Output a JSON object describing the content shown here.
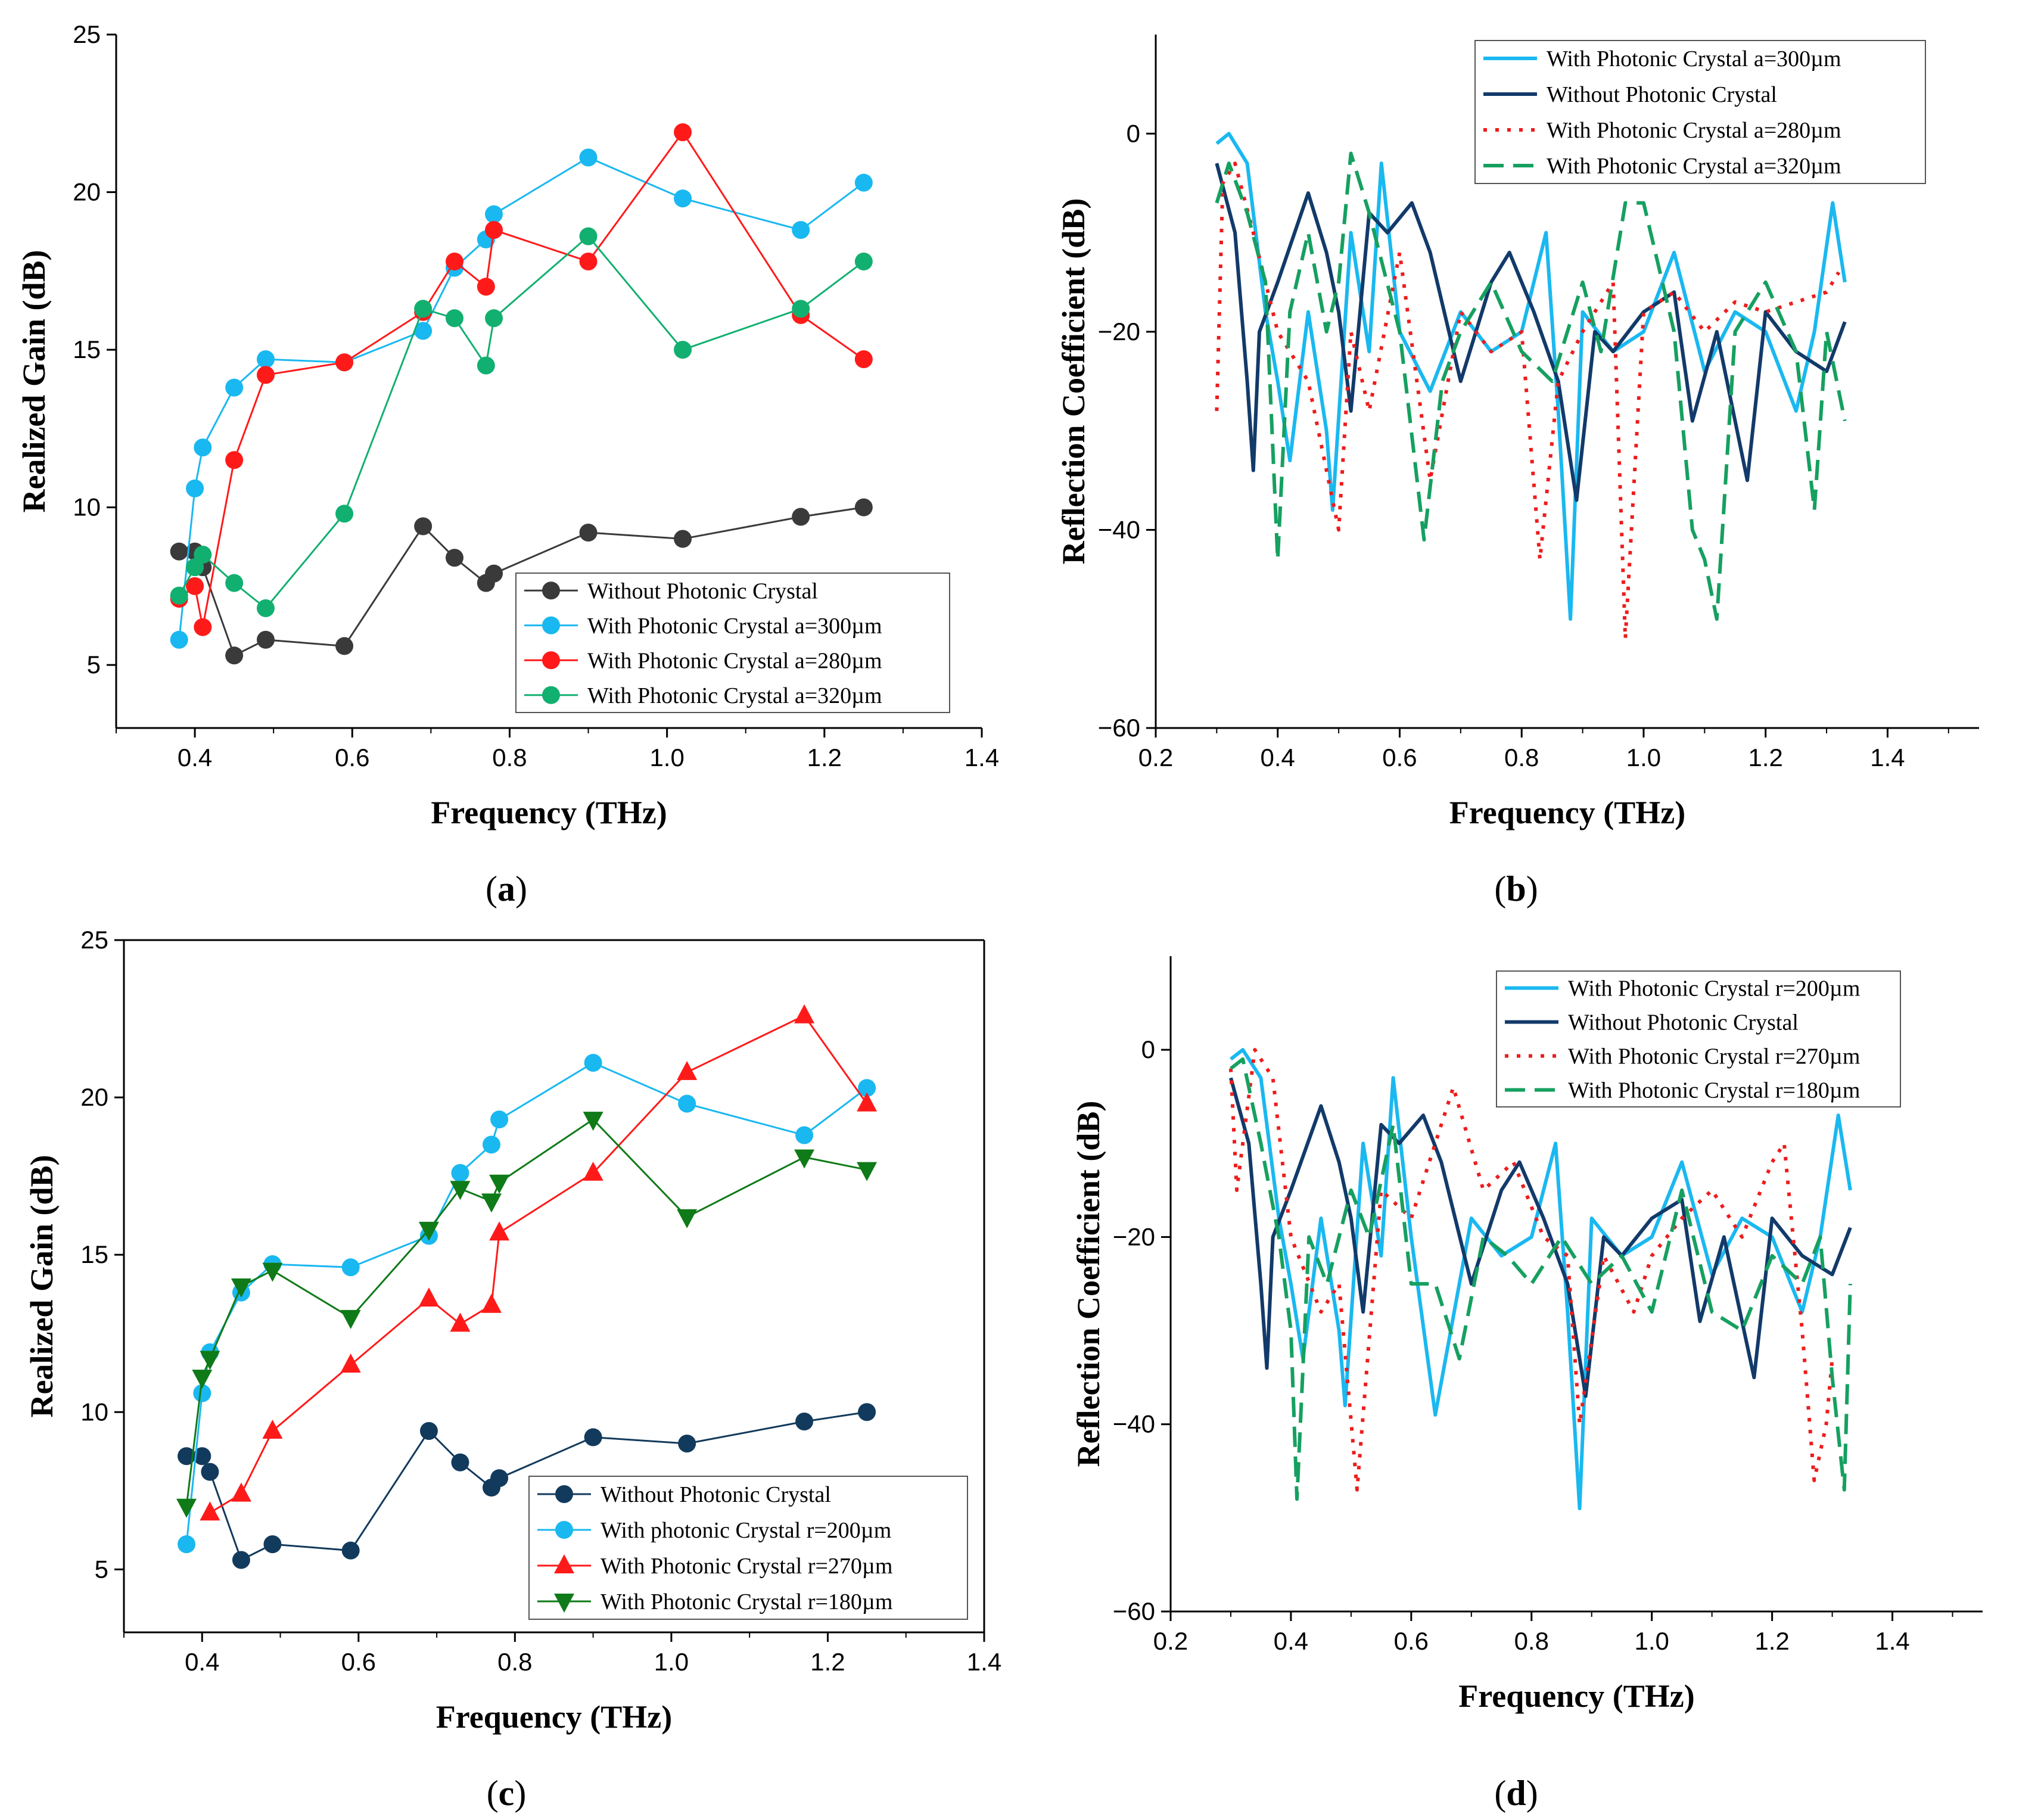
{
  "chart_data": [
    {
      "panel": "a",
      "type": "line",
      "xlabel": "Frequency (THz)",
      "ylabel": "Realized Gain (dB)",
      "xlim": [
        0.3,
        1.4
      ],
      "ylim": [
        3,
        25
      ],
      "xticks": [
        "0.4",
        "0.6",
        "0.8",
        "1.0",
        "1.2",
        "1.4"
      ],
      "yticks": [
        "5",
        "10",
        "15",
        "20",
        "25"
      ],
      "legend_position": "bottom-right",
      "series": [
        {
          "name": "Without Photonic Crystal",
          "color": "#3a3a3a",
          "marker": "circle",
          "x": [
            0.38,
            0.4,
            0.41,
            0.45,
            0.49,
            0.59,
            0.69,
            0.73,
            0.77,
            0.78,
            0.9,
            1.02,
            1.17,
            1.25
          ],
          "y": [
            8.6,
            8.6,
            8.1,
            5.3,
            5.8,
            5.6,
            9.4,
            8.4,
            7.6,
            7.9,
            9.2,
            9.0,
            9.7,
            10.0
          ]
        },
        {
          "name": "With Photonic Crystal a=300µm",
          "color": "#1ab8f0",
          "marker": "circle",
          "x": [
            0.38,
            0.4,
            0.41,
            0.45,
            0.49,
            0.59,
            0.69,
            0.73,
            0.77,
            0.78,
            0.9,
            1.02,
            1.17,
            1.25
          ],
          "y": [
            5.8,
            10.6,
            11.9,
            13.8,
            14.7,
            14.6,
            15.6,
            17.6,
            18.5,
            19.3,
            21.1,
            19.8,
            18.8,
            20.3
          ]
        },
        {
          "name": "With Photonic Crystal a=280µm",
          "color": "#ff1a1a",
          "marker": "circle",
          "x": [
            0.38,
            0.4,
            0.41,
            0.45,
            0.49,
            0.59,
            0.69,
            0.73,
            0.77,
            0.78,
            0.9,
            1.02,
            1.17,
            1.25
          ],
          "y": [
            7.1,
            7.5,
            6.2,
            11.5,
            14.2,
            14.6,
            16.2,
            17.8,
            17.0,
            18.8,
            17.8,
            21.9,
            16.1,
            14.7
          ]
        },
        {
          "name": "With Photonic Crystal a=320µm",
          "color": "#12b070",
          "marker": "circle",
          "x": [
            0.38,
            0.4,
            0.41,
            0.45,
            0.49,
            0.59,
            0.69,
            0.73,
            0.77,
            0.78,
            0.9,
            1.02,
            1.17,
            1.25
          ],
          "y": [
            7.2,
            8.1,
            8.5,
            7.6,
            6.8,
            9.8,
            16.3,
            16.0,
            14.5,
            16.0,
            18.6,
            15.0,
            16.3,
            17.8
          ]
        }
      ]
    },
    {
      "panel": "b",
      "type": "line",
      "xlabel": "Frequency (THz)",
      "ylabel": "Reflection Coefficient (dB)",
      "xlim": [
        0.2,
        1.55
      ],
      "ylim": [
        -60,
        10
      ],
      "xticks": [
        "0.2",
        "0.4",
        "0.6",
        "0.8",
        "1.0",
        "1.2",
        "1.4"
      ],
      "yticks": [
        "0",
        "−20",
        "−40",
        "−60"
      ],
      "legend_position": "top-center",
      "series": [
        {
          "name": "With Photonic Crystal a=300µm",
          "color": "#1ab8f0",
          "style": "solid",
          "x": [
            0.3,
            0.32,
            0.35,
            0.38,
            0.4,
            0.42,
            0.45,
            0.48,
            0.49,
            0.52,
            0.55,
            0.57,
            0.6,
            0.65,
            0.7,
            0.75,
            0.8,
            0.84,
            0.86,
            0.88,
            0.9,
            0.95,
            1.0,
            1.05,
            1.1,
            1.15,
            1.2,
            1.25,
            1.28,
            1.31,
            1.33
          ],
          "y": [
            -1,
            0,
            -3,
            -18,
            -25,
            -33,
            -18,
            -30,
            -38,
            -10,
            -22,
            -3,
            -20,
            -26,
            -18,
            -22,
            -20,
            -10,
            -28,
            -49,
            -18,
            -22,
            -20,
            -12,
            -24,
            -18,
            -20,
            -28,
            -20,
            -7,
            -15
          ]
        },
        {
          "name": "Without Photonic Crystal",
          "color": "#123a6a",
          "style": "solid",
          "x": [
            0.3,
            0.33,
            0.35,
            0.36,
            0.37,
            0.4,
            0.45,
            0.48,
            0.5,
            0.52,
            0.55,
            0.58,
            0.62,
            0.65,
            0.7,
            0.75,
            0.78,
            0.82,
            0.86,
            0.89,
            0.92,
            0.95,
            1.0,
            1.05,
            1.08,
            1.12,
            1.17,
            1.2,
            1.25,
            1.3,
            1.33
          ],
          "y": [
            -3,
            -10,
            -25,
            -34,
            -20,
            -15,
            -6,
            -12,
            -18,
            -28,
            -8,
            -10,
            -7,
            -12,
            -25,
            -15,
            -12,
            -18,
            -25,
            -37,
            -20,
            -22,
            -18,
            -16,
            -29,
            -20,
            -35,
            -18,
            -22,
            -24,
            -19
          ]
        },
        {
          "name": "With Photonic Crystal a=280µm",
          "color": "#ee1c1c",
          "style": "dotted",
          "x": [
            0.3,
            0.31,
            0.33,
            0.36,
            0.4,
            0.45,
            0.5,
            0.52,
            0.55,
            0.6,
            0.65,
            0.7,
            0.75,
            0.8,
            0.83,
            0.86,
            0.9,
            0.95,
            0.97,
            1.0,
            1.05,
            1.1,
            1.15,
            1.2,
            1.25,
            1.3,
            1.32
          ],
          "y": [
            -28,
            -5,
            -3,
            -10,
            -20,
            -25,
            -40,
            -20,
            -28,
            -12,
            -35,
            -18,
            -22,
            -20,
            -43,
            -25,
            -20,
            -15,
            -51,
            -18,
            -16,
            -20,
            -17,
            -18,
            -17,
            -16,
            -14
          ]
        },
        {
          "name": "With Photonic Crystal a=320µm",
          "color": "#16a060",
          "style": "dashed",
          "x": [
            0.3,
            0.32,
            0.35,
            0.38,
            0.4,
            0.42,
            0.45,
            0.48,
            0.5,
            0.52,
            0.55,
            0.6,
            0.64,
            0.67,
            0.7,
            0.75,
            0.8,
            0.85,
            0.9,
            0.93,
            0.97,
            1.0,
            1.05,
            1.08,
            1.1,
            1.12,
            1.15,
            1.2,
            1.25,
            1.28,
            1.3,
            1.33
          ],
          "y": [
            -7,
            -3,
            -8,
            -15,
            -43,
            -18,
            -10,
            -20,
            -15,
            -2,
            -8,
            -20,
            -41,
            -25,
            -20,
            -15,
            -22,
            -25,
            -15,
            -22,
            -7,
            -7,
            -20,
            -40,
            -43,
            -49,
            -20,
            -15,
            -22,
            -38,
            -20,
            -29
          ]
        }
      ]
    },
    {
      "panel": "c",
      "type": "line",
      "xlabel": "Frequency (THz)",
      "ylabel": "Realized Gain (dB)",
      "xlim": [
        0.3,
        1.4
      ],
      "ylim": [
        3,
        25
      ],
      "xticks": [
        "0.4",
        "0.6",
        "0.8",
        "1.0",
        "1.2",
        "1.4"
      ],
      "yticks": [
        "5",
        "10",
        "15",
        "20",
        "25"
      ],
      "legend_position": "bottom-right",
      "series": [
        {
          "name": "Without Photonic Crystal",
          "color": "#123a5c",
          "marker": "circle",
          "x": [
            0.38,
            0.4,
            0.41,
            0.45,
            0.49,
            0.59,
            0.69,
            0.73,
            0.77,
            0.78,
            0.9,
            1.02,
            1.17,
            1.25
          ],
          "y": [
            8.6,
            8.6,
            8.1,
            5.3,
            5.8,
            5.6,
            9.4,
            8.4,
            7.6,
            7.9,
            9.2,
            9.0,
            9.7,
            10.0
          ]
        },
        {
          "name": "With photonic Crystal r=200µm",
          "color": "#1ab8f0",
          "marker": "circle",
          "x": [
            0.38,
            0.4,
            0.41,
            0.45,
            0.49,
            0.59,
            0.69,
            0.73,
            0.77,
            0.78,
            0.9,
            1.02,
            1.17,
            1.25
          ],
          "y": [
            5.8,
            10.6,
            11.9,
            13.8,
            14.7,
            14.6,
            15.6,
            17.6,
            18.5,
            19.3,
            21.1,
            19.8,
            18.8,
            20.3
          ]
        },
        {
          "name": "With Photonic Crystal r=270µm",
          "color": "#ff1a1a",
          "marker": "triangle-up",
          "x": [
            0.41,
            0.45,
            0.49,
            0.59,
            0.69,
            0.73,
            0.77,
            0.78,
            0.9,
            1.02,
            1.17,
            1.25
          ],
          "y": [
            6.8,
            7.4,
            9.4,
            11.5,
            13.6,
            12.8,
            13.4,
            15.7,
            17.6,
            20.8,
            22.6,
            19.8
          ]
        },
        {
          "name": "With Photonic Crystal r=180µm",
          "color": "#0f7a18",
          "marker": "triangle-down",
          "x": [
            0.38,
            0.4,
            0.41,
            0.45,
            0.49,
            0.59,
            0.69,
            0.73,
            0.77,
            0.78,
            0.9,
            1.02,
            1.17,
            1.25
          ],
          "y": [
            7.0,
            11.1,
            11.7,
            14.0,
            14.5,
            13.0,
            15.8,
            17.1,
            16.7,
            17.3,
            19.3,
            16.2,
            18.1,
            17.7
          ]
        }
      ]
    },
    {
      "panel": "d",
      "type": "line",
      "xlabel": "Frequency (THz)",
      "ylabel": "Reflection Coefficient (dB)",
      "xlim": [
        0.2,
        1.55
      ],
      "ylim": [
        -60,
        10
      ],
      "xticks": [
        "0.2",
        "0.4",
        "0.6",
        "0.8",
        "1.0",
        "1.2",
        "1.4"
      ],
      "yticks": [
        "0",
        "−20",
        "−40",
        "−60"
      ],
      "legend_position": "top-center",
      "series": [
        {
          "name": "With Photonic Crystal r=200µm",
          "color": "#1ab8f0",
          "style": "solid",
          "x": [
            0.3,
            0.32,
            0.35,
            0.38,
            0.4,
            0.42,
            0.45,
            0.48,
            0.49,
            0.52,
            0.55,
            0.57,
            0.6,
            0.64,
            0.7,
            0.75,
            0.8,
            0.84,
            0.86,
            0.88,
            0.9,
            0.95,
            1.0,
            1.05,
            1.1,
            1.15,
            1.2,
            1.25,
            1.28,
            1.31,
            1.33
          ],
          "y": [
            -1,
            0,
            -3,
            -18,
            -25,
            -33,
            -18,
            -30,
            -38,
            -10,
            -22,
            -3,
            -20,
            -39,
            -18,
            -22,
            -20,
            -10,
            -28,
            -49,
            -18,
            -22,
            -20,
            -12,
            -24,
            -18,
            -20,
            -28,
            -20,
            -7,
            -15
          ]
        },
        {
          "name": "Without Photonic Crystal",
          "color": "#123a6a",
          "style": "solid",
          "x": [
            0.3,
            0.33,
            0.35,
            0.36,
            0.37,
            0.4,
            0.45,
            0.48,
            0.5,
            0.52,
            0.55,
            0.58,
            0.62,
            0.65,
            0.7,
            0.75,
            0.78,
            0.82,
            0.86,
            0.89,
            0.92,
            0.95,
            1.0,
            1.05,
            1.08,
            1.12,
            1.17,
            1.2,
            1.25,
            1.3,
            1.33
          ],
          "y": [
            -3,
            -10,
            -25,
            -34,
            -20,
            -15,
            -6,
            -12,
            -18,
            -28,
            -8,
            -10,
            -7,
            -12,
            -25,
            -15,
            -12,
            -18,
            -25,
            -37,
            -20,
            -22,
            -18,
            -16,
            -29,
            -20,
            -35,
            -18,
            -22,
            -24,
            -19
          ]
        },
        {
          "name": "With Photonic Crystal r=270µm",
          "color": "#ee1c1c",
          "style": "dotted",
          "x": [
            0.3,
            0.31,
            0.34,
            0.37,
            0.4,
            0.45,
            0.48,
            0.51,
            0.55,
            0.6,
            0.67,
            0.72,
            0.77,
            0.82,
            0.86,
            0.88,
            0.92,
            0.97,
            1.0,
            1.05,
            1.1,
            1.15,
            1.2,
            1.22,
            1.25,
            1.27,
            1.29,
            1.3
          ],
          "y": [
            -2,
            -15,
            0,
            -3,
            -20,
            -28,
            -25,
            -47,
            -15,
            -18,
            -4,
            -15,
            -12,
            -20,
            -22,
            -40,
            -22,
            -28,
            -22,
            -18,
            -15,
            -20,
            -12,
            -10,
            -30,
            -46,
            -40,
            -33
          ]
        },
        {
          "name": "With Photonic Crystal r=180µm",
          "color": "#16a060",
          "style": "dashed",
          "x": [
            0.3,
            0.32,
            0.35,
            0.38,
            0.4,
            0.41,
            0.43,
            0.46,
            0.5,
            0.53,
            0.57,
            0.6,
            0.64,
            0.68,
            0.72,
            0.76,
            0.8,
            0.85,
            0.9,
            0.95,
            1.0,
            1.05,
            1.1,
            1.15,
            1.2,
            1.25,
            1.28,
            1.3,
            1.32,
            1.33
          ],
          "y": [
            -2,
            -1,
            -10,
            -20,
            -30,
            -48,
            -20,
            -25,
            -15,
            -20,
            -8,
            -25,
            -25,
            -33,
            -20,
            -22,
            -25,
            -20,
            -25,
            -22,
            -28,
            -15,
            -28,
            -30,
            -22,
            -25,
            -20,
            -35,
            -47,
            -25
          ]
        }
      ]
    }
  ],
  "panel_labels": [
    "a",
    "b",
    "c",
    "d"
  ]
}
